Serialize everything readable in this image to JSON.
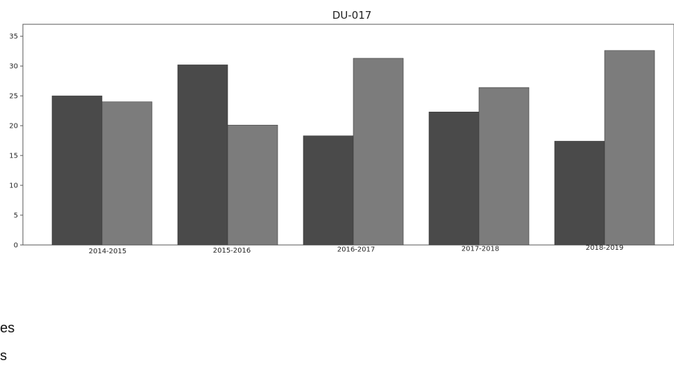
{
  "chart_data": {
    "type": "bar",
    "title": "DU-017",
    "categories": [
      "2014-2015",
      "2015-2016",
      "2016-2017",
      "2017-2018",
      "2018-2019"
    ],
    "series": [
      {
        "values": [
          25.0,
          30.2,
          18.3,
          22.3,
          17.4
        ],
        "color": "#4a4a4a"
      },
      {
        "values": [
          24.0,
          20.1,
          31.3,
          26.4,
          32.6
        ],
        "color": "#7c7c7c"
      }
    ],
    "xlabel": "",
    "ylabel": "",
    "ylim": [
      0,
      37
    ],
    "yticks": [
      "0",
      "5",
      "10",
      "15",
      "20",
      "25",
      "30",
      "35"
    ],
    "grid": false
  },
  "page_fragments": [
    "es",
    "s"
  ]
}
